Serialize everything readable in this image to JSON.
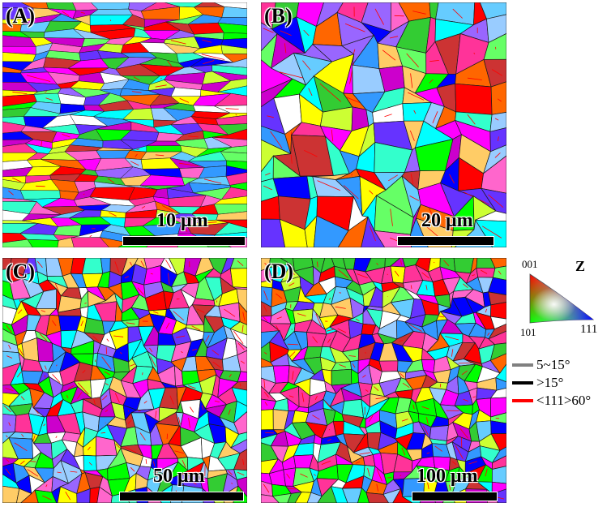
{
  "panels": [
    {
      "id": "A",
      "label": "(A)",
      "scale_label": "10 μm",
      "grain": "elongated"
    },
    {
      "id": "B",
      "label": "(B)",
      "scale_label": "20 μm",
      "grain": "coarse"
    },
    {
      "id": "C",
      "label": "(C)",
      "scale_label": "50 μm",
      "grain": "medium"
    },
    {
      "id": "D",
      "label": "(D)",
      "scale_label": "100 μm",
      "grain": "banded"
    }
  ],
  "ipf_legend": {
    "axis": "Z",
    "corner_001": "001",
    "corner_101": "101",
    "corner_111": "111",
    "colors": {
      "001": "#ff0000",
      "101": "#00ff00",
      "111": "#0000ff"
    }
  },
  "boundary_legend": [
    {
      "label": "5~15°",
      "color": "#808080"
    },
    {
      "label": ">15°",
      "color": "#000000"
    },
    {
      "label": "<111>60°",
      "color": "#ff0000"
    }
  ],
  "palette": [
    "#ff00ff",
    "#ff3399",
    "#00ff00",
    "#33cc33",
    "#00ffff",
    "#3399ff",
    "#0000ff",
    "#6633ff",
    "#ffff00",
    "#ff0000",
    "#ff6600",
    "#cc00cc",
    "#66ff66",
    "#9966ff",
    "#ff66cc",
    "#33ffcc",
    "#99ccff",
    "#ffcc66",
    "#cc3333",
    "#66ccff",
    "#ccff33",
    "#ffffff"
  ]
}
